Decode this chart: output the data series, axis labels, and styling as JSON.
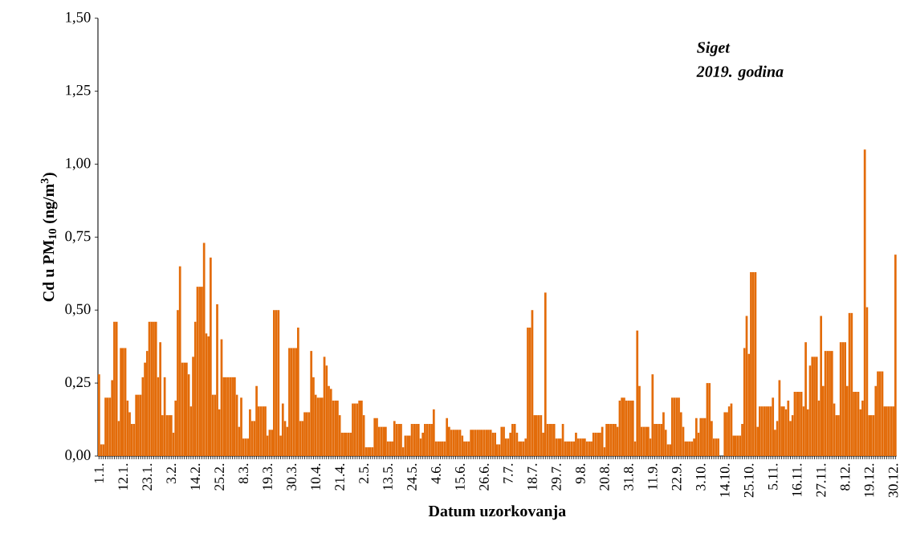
{
  "chart_data": {
    "type": "bar",
    "xlabel": "Datum uzorkovanja",
    "ylabel": "Cd u PM$_{10}$ (ng/m$^{3}$)",
    "annotations": [
      "Siget",
      "2019. godina"
    ],
    "color": "#e36c0a",
    "ylim": [
      0,
      1.5
    ],
    "yticks": [
      {
        "value": 0,
        "label": "0,00"
      },
      {
        "value": 0.25,
        "label": "0,25"
      },
      {
        "value": 0.5,
        "label": "0,50"
      },
      {
        "value": 0.75,
        "label": "0,75"
      },
      {
        "value": 1.0,
        "label": "1,00"
      },
      {
        "value": 1.25,
        "label": "1,25"
      },
      {
        "value": 1.5,
        "label": "1,50"
      }
    ],
    "grid": false,
    "categories": [
      "1.1.",
      null,
      null,
      null,
      null,
      null,
      null,
      null,
      null,
      null,
      null,
      "12.1.",
      null,
      null,
      null,
      null,
      null,
      null,
      null,
      null,
      null,
      null,
      "23.1.",
      null,
      null,
      null,
      null,
      null,
      null,
      null,
      null,
      null,
      null,
      "3.2.",
      null,
      null,
      null,
      null,
      null,
      null,
      null,
      null,
      null,
      null,
      "14.2.",
      null,
      null,
      null,
      null,
      null,
      null,
      null,
      null,
      null,
      null,
      "25.2.",
      null,
      null,
      null,
      null,
      null,
      null,
      null,
      null,
      null,
      null,
      "8.3.",
      null,
      null,
      null,
      null,
      null,
      null,
      null,
      null,
      null,
      null,
      "19.3.",
      null,
      null,
      null,
      null,
      null,
      null,
      null,
      null,
      null,
      null,
      "30.3.",
      null,
      null,
      null,
      null,
      null,
      null,
      null,
      null,
      null,
      null,
      "10.4.",
      null,
      null,
      null,
      null,
      null,
      null,
      null,
      null,
      null,
      null,
      "21.4.",
      null,
      null,
      null,
      null,
      null,
      null,
      null,
      null,
      null,
      null,
      "2.5.",
      null,
      null,
      null,
      null,
      null,
      null,
      null,
      null,
      null,
      null,
      "13.5.",
      null,
      null,
      null,
      null,
      null,
      null,
      null,
      null,
      null,
      null,
      "24.5.",
      null,
      null,
      null,
      null,
      null,
      null,
      null,
      null,
      null,
      null,
      "4.6.",
      null,
      null,
      null,
      null,
      null,
      null,
      null,
      null,
      null,
      null,
      "15.6.",
      null,
      null,
      null,
      null,
      null,
      null,
      null,
      null,
      null,
      null,
      "26.6.",
      null,
      null,
      null,
      null,
      null,
      null,
      null,
      null,
      null,
      null,
      "7.7.",
      null,
      null,
      null,
      null,
      null,
      null,
      null,
      null,
      null,
      null,
      "18.7.",
      null,
      null,
      null,
      null,
      null,
      null,
      null,
      null,
      null,
      null,
      "29.7.",
      null,
      null,
      null,
      null,
      null,
      null,
      null,
      null,
      null,
      null,
      "9.8.",
      null,
      null,
      null,
      null,
      null,
      null,
      null,
      null,
      null,
      null,
      "20.8.",
      null,
      null,
      null,
      null,
      null,
      null,
      null,
      null,
      null,
      null,
      "31.8.",
      null,
      null,
      null,
      null,
      null,
      null,
      null,
      null,
      null,
      null,
      "11.9.",
      null,
      null,
      null,
      null,
      null,
      null,
      null,
      null,
      null,
      null,
      "22.9.",
      null,
      null,
      null,
      null,
      null,
      null,
      null,
      null,
      null,
      null,
      "3.10.",
      null,
      null,
      null,
      null,
      null,
      null,
      null,
      null,
      null,
      null,
      "14.10.",
      null,
      null,
      null,
      null,
      null,
      null,
      null,
      null,
      null,
      null,
      "25.10.",
      null,
      null,
      null,
      null,
      null,
      null,
      null,
      null,
      null,
      null,
      "5.11.",
      null,
      null,
      null,
      null,
      null,
      null,
      null,
      null,
      null,
      null,
      "16.11.",
      null,
      null,
      null,
      null,
      null,
      null,
      null,
      null,
      null,
      null,
      "27.11.",
      null,
      null,
      null,
      null,
      null,
      null,
      null,
      null,
      null,
      null,
      "8.12.",
      null,
      null,
      null,
      null,
      null,
      null,
      null,
      null,
      null,
      null,
      "19.12.",
      null,
      null,
      null,
      null,
      null,
      null,
      null,
      null,
      null,
      null,
      "30.12.",
      null
    ],
    "values": [
      0.28,
      0.04,
      0.04,
      0.2,
      0.2,
      0.2,
      0.26,
      0.46,
      0.46,
      0.12,
      0.37,
      0.37,
      0.37,
      0.19,
      0.15,
      0.11,
      0.11,
      0.21,
      0.21,
      0.21,
      0.27,
      0.32,
      0.36,
      0.46,
      0.46,
      0.46,
      0.46,
      0.27,
      0.39,
      0.14,
      0.27,
      0.14,
      0.14,
      0.14,
      0.08,
      0.19,
      0.5,
      0.65,
      0.32,
      0.32,
      0.32,
      0.28,
      0.17,
      0.34,
      0.46,
      0.58,
      0.58,
      0.58,
      0.73,
      0.42,
      0.41,
      0.68,
      0.21,
      0.21,
      0.52,
      0.16,
      0.4,
      0.27,
      0.27,
      0.27,
      0.27,
      0.27,
      0.27,
      0.21,
      0.1,
      0.2,
      0.06,
      0.06,
      0.06,
      0.16,
      0.12,
      0.12,
      0.24,
      0.17,
      0.17,
      0.17,
      0.17,
      0.07,
      0.09,
      0.09,
      0.5,
      0.5,
      0.5,
      0.07,
      0.18,
      0.12,
      0.1,
      0.37,
      0.37,
      0.37,
      0.37,
      0.44,
      0.12,
      0.12,
      0.15,
      0.15,
      0.15,
      0.36,
      0.27,
      0.21,
      0.2,
      0.2,
      0.2,
      0.34,
      0.31,
      0.24,
      0.23,
      0.19,
      0.19,
      0.19,
      0.14,
      0.08,
      0.08,
      0.08,
      0.08,
      0.08,
      0.18,
      0.18,
      0.18,
      0.19,
      0.19,
      0.14,
      0.03,
      0.03,
      0.03,
      0.03,
      0.13,
      0.13,
      0.1,
      0.1,
      0.1,
      0.1,
      0.05,
      0.05,
      0.05,
      0.12,
      0.11,
      0.11,
      0.11,
      0.03,
      0.07,
      0.07,
      0.07,
      0.11,
      0.11,
      0.11,
      0.11,
      0.06,
      0.08,
      0.11,
      0.11,
      0.11,
      0.11,
      0.16,
      0.05,
      0.05,
      0.05,
      0.05,
      0.05,
      0.13,
      0.1,
      0.09,
      0.09,
      0.09,
      0.09,
      0.09,
      0.07,
      0.05,
      0.05,
      0.05,
      0.09,
      0.09,
      0.09,
      0.09,
      0.09,
      0.09,
      0.09,
      0.09,
      0.09,
      0.09,
      0.08,
      0.08,
      0.04,
      0.04,
      0.1,
      0.1,
      0.06,
      0.06,
      0.08,
      0.11,
      0.11,
      0.08,
      0.05,
      0.05,
      0.05,
      0.06,
      0.44,
      0.44,
      0.5,
      0.14,
      0.14,
      0.14,
      0.14,
      0.08,
      0.56,
      0.11,
      0.11,
      0.11,
      0.11,
      0.06,
      0.06,
      0.06,
      0.11,
      0.05,
      0.05,
      0.05,
      0.05,
      0.05,
      0.08,
      0.06,
      0.06,
      0.06,
      0.06,
      0.05,
      0.05,
      0.05,
      0.08,
      0.08,
      0.08,
      0.08,
      0.1,
      0.03,
      0.11,
      0.11,
      0.11,
      0.11,
      0.11,
      0.1,
      0.19,
      0.2,
      0.2,
      0.19,
      0.19,
      0.19,
      0.19,
      0.05,
      0.43,
      0.24,
      0.1,
      0.1,
      0.1,
      0.1,
      0.06,
      0.28,
      0.11,
      0.11,
      0.11,
      0.11,
      0.15,
      0.09,
      0.04,
      0.04,
      0.2,
      0.2,
      0.2,
      0.2,
      0.15,
      0.1,
      0.05,
      0.05,
      0.05,
      0.05,
      0.06,
      0.13,
      0.08,
      0.13,
      0.13,
      0.13,
      0.25,
      0.25,
      0.12,
      0.06,
      0.06,
      0.06,
      null,
      null,
      0.15,
      0.15,
      0.17,
      0.18,
      0.07,
      0.07,
      0.07,
      0.07,
      0.11,
      0.37,
      0.48,
      0.35,
      0.63,
      0.63,
      0.63,
      0.1,
      0.17,
      0.17,
      0.17,
      0.17,
      0.17,
      0.17,
      0.2,
      0.09,
      0.12,
      0.26,
      0.17,
      0.17,
      0.16,
      0.19,
      0.12,
      0.14,
      0.22,
      0.22,
      0.22,
      0.22,
      0.17,
      0.39,
      0.16,
      0.31,
      0.34,
      0.34,
      0.34,
      0.19,
      0.48,
      0.24,
      0.36,
      0.36,
      0.36,
      0.36,
      0.18,
      0.14,
      0.14,
      0.39,
      0.39,
      0.39,
      0.24,
      0.49,
      0.49,
      0.22,
      0.22,
      0.22,
      0.16,
      0.19,
      1.05,
      0.51,
      0.14,
      0.14,
      0.14,
      0.24,
      0.29,
      0.29,
      0.29,
      0.17,
      0.17,
      0.17,
      0.17,
      0.17,
      0.69
    ]
  }
}
